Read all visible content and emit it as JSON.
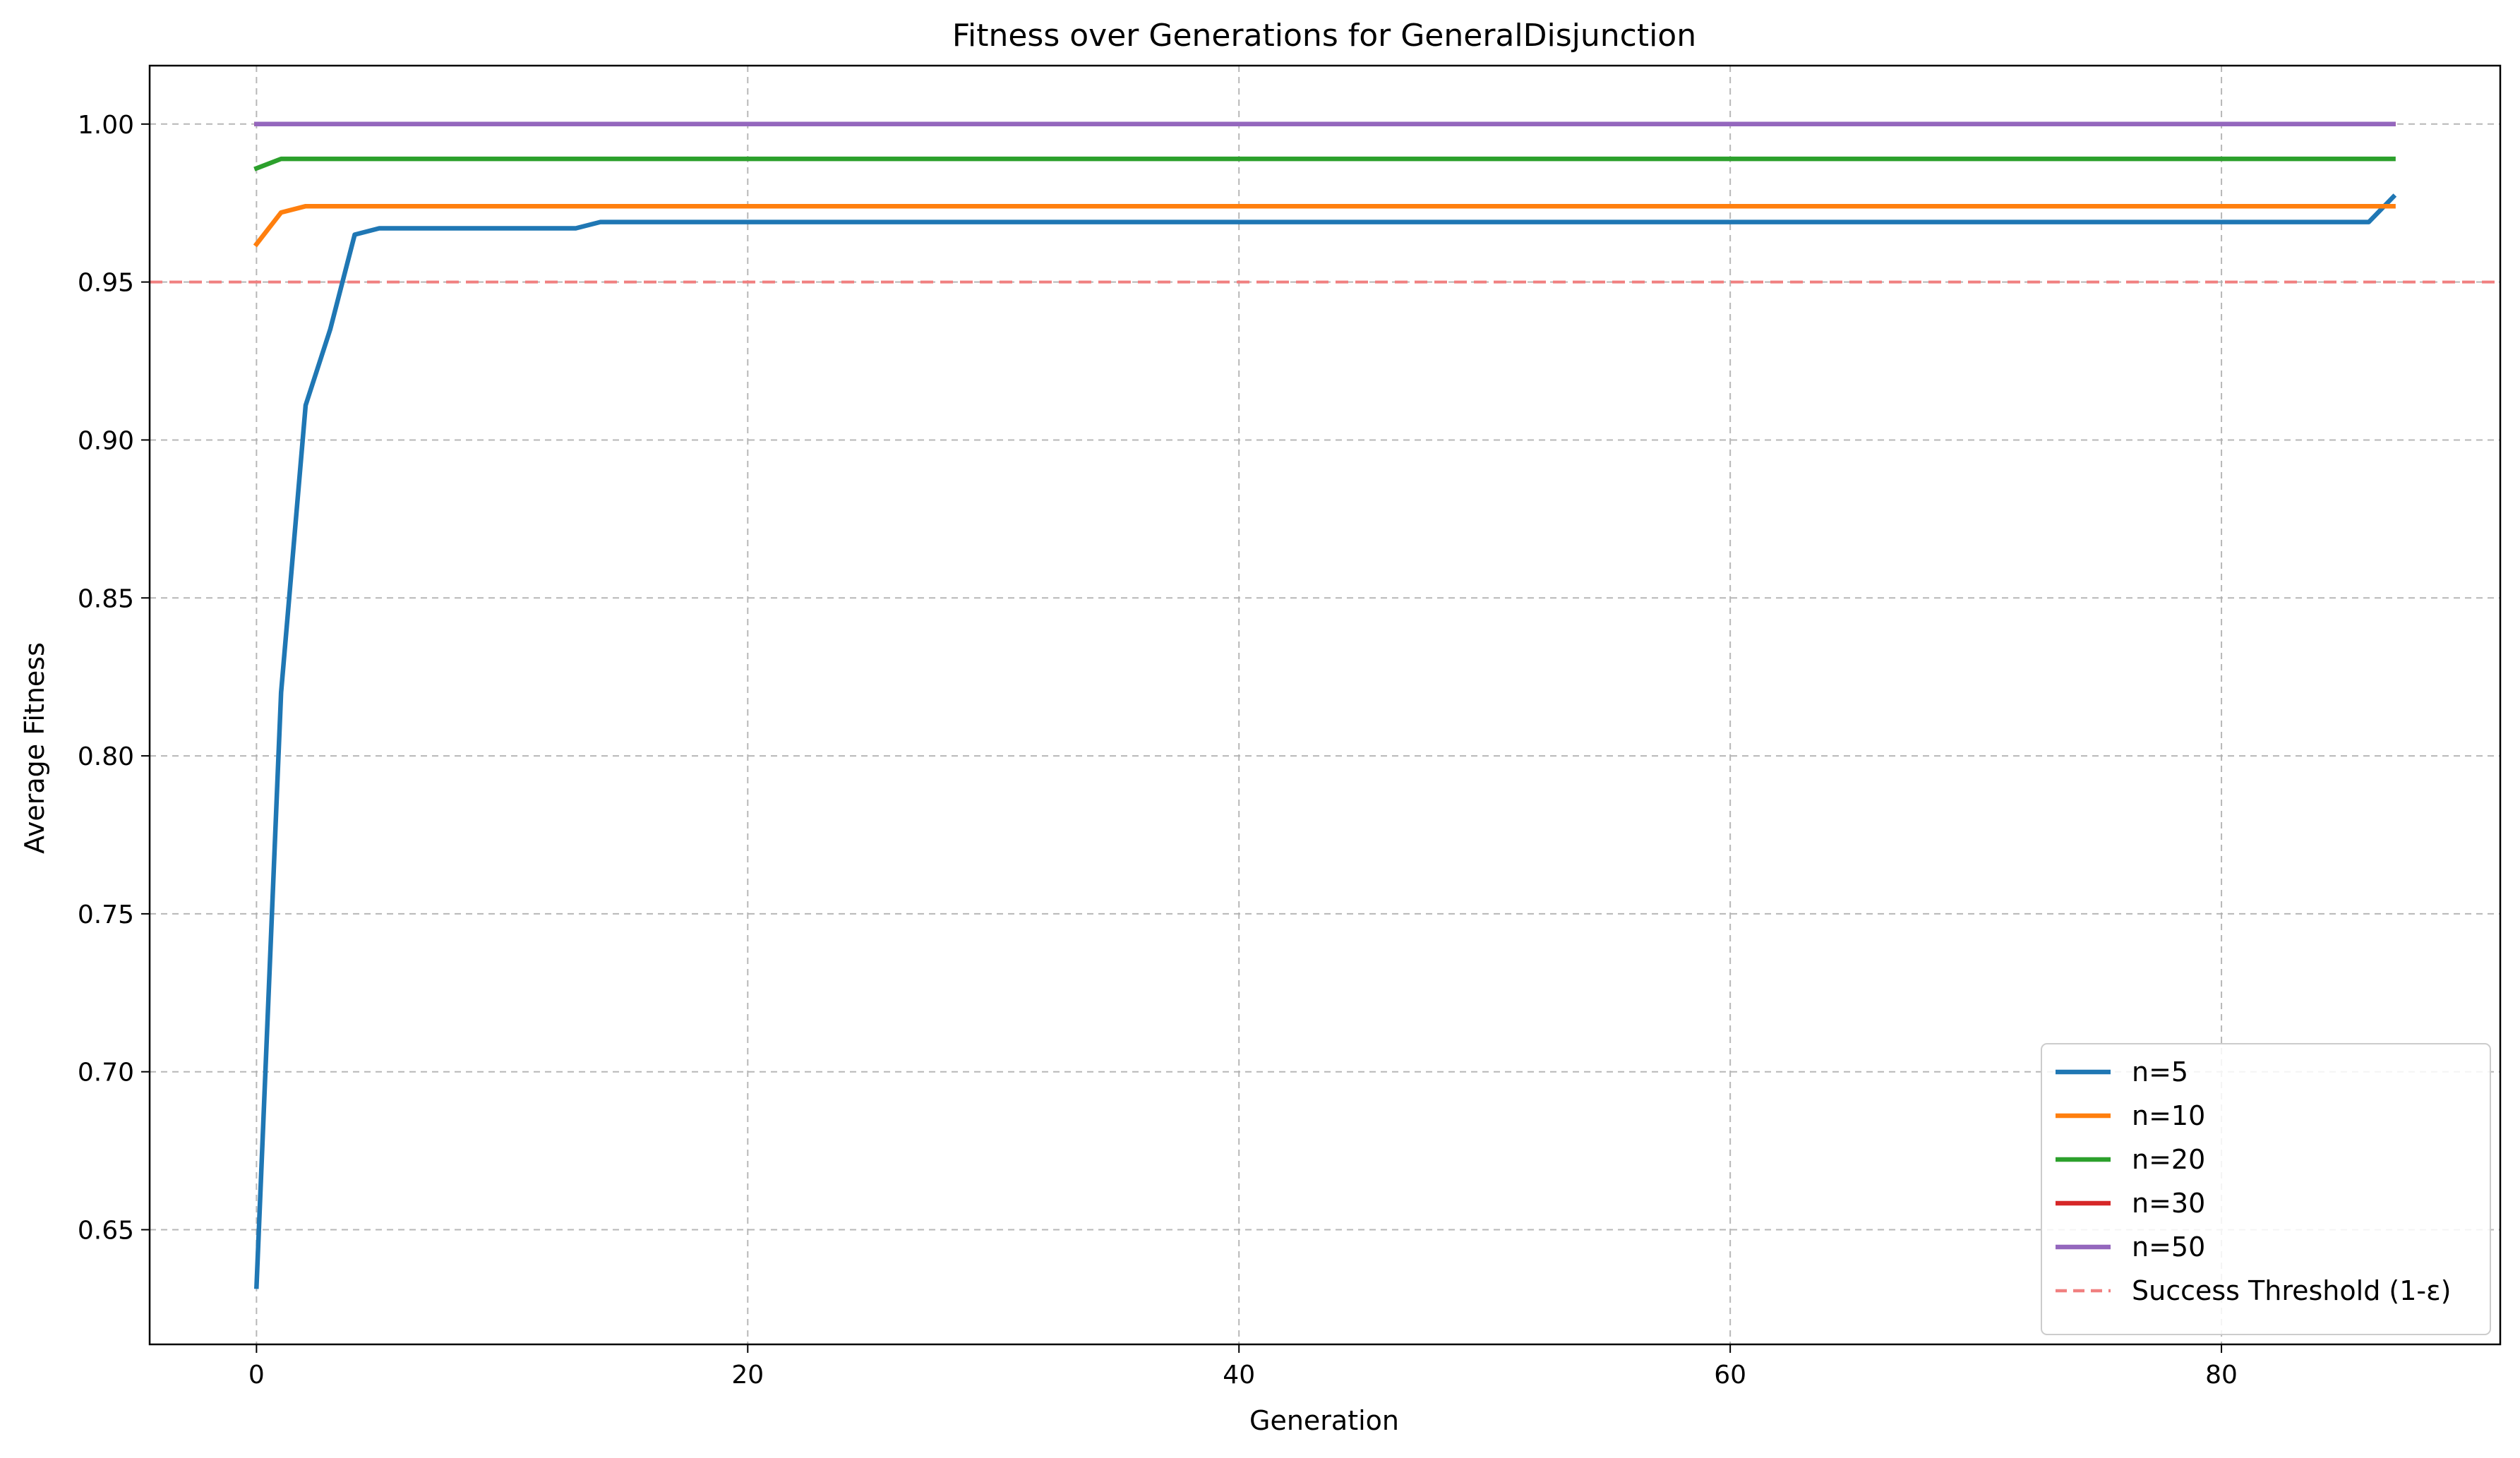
{
  "chart_data": {
    "type": "line",
    "title": "Fitness over Generations for GeneralDisjunction",
    "xlabel": "Generation",
    "ylabel": "Average Fitness",
    "xlim": [
      -4.35,
      91.35
    ],
    "ylim": [
      0.6137,
      1.0185
    ],
    "xticks": [
      0,
      20,
      40,
      60,
      80
    ],
    "xtick_labels": [
      "0",
      "20",
      "40",
      "60",
      "80"
    ],
    "yticks": [
      0.65,
      0.7,
      0.75,
      0.8,
      0.85,
      0.9,
      0.95,
      1.0
    ],
    "ytick_labels": [
      "0.65",
      "0.70",
      "0.75",
      "0.80",
      "0.85",
      "0.90",
      "0.95",
      "1.00"
    ],
    "grid": true,
    "legend_position": "lower-right",
    "threshold": {
      "name": "Success Threshold (1-ε)",
      "y": 0.95,
      "color": "#f08080",
      "style": "dashed"
    },
    "series": [
      {
        "name": "n=5",
        "color": "#1f77b4",
        "points": [
          [
            0,
            0.632
          ],
          [
            1,
            0.82
          ],
          [
            2,
            0.911
          ],
          [
            3,
            0.935
          ],
          [
            4,
            0.965
          ],
          [
            5,
            0.967
          ],
          [
            13,
            0.967
          ],
          [
            14,
            0.969
          ],
          [
            86,
            0.969
          ],
          [
            87,
            0.977
          ]
        ]
      },
      {
        "name": "n=10",
        "color": "#ff7f0e",
        "points": [
          [
            0,
            0.962
          ],
          [
            1,
            0.972
          ],
          [
            2,
            0.974
          ],
          [
            87,
            0.974
          ]
        ]
      },
      {
        "name": "n=20",
        "color": "#2ca02c",
        "points": [
          [
            0,
            0.986
          ],
          [
            1,
            0.989
          ],
          [
            87,
            0.989
          ]
        ]
      },
      {
        "name": "n=30",
        "color": "#d62728",
        "points": [
          [
            0,
            1.0
          ],
          [
            87,
            1.0
          ]
        ]
      },
      {
        "name": "n=50",
        "color": "#9467bd",
        "points": [
          [
            0,
            1.0
          ],
          [
            87,
            1.0
          ]
        ]
      }
    ]
  }
}
